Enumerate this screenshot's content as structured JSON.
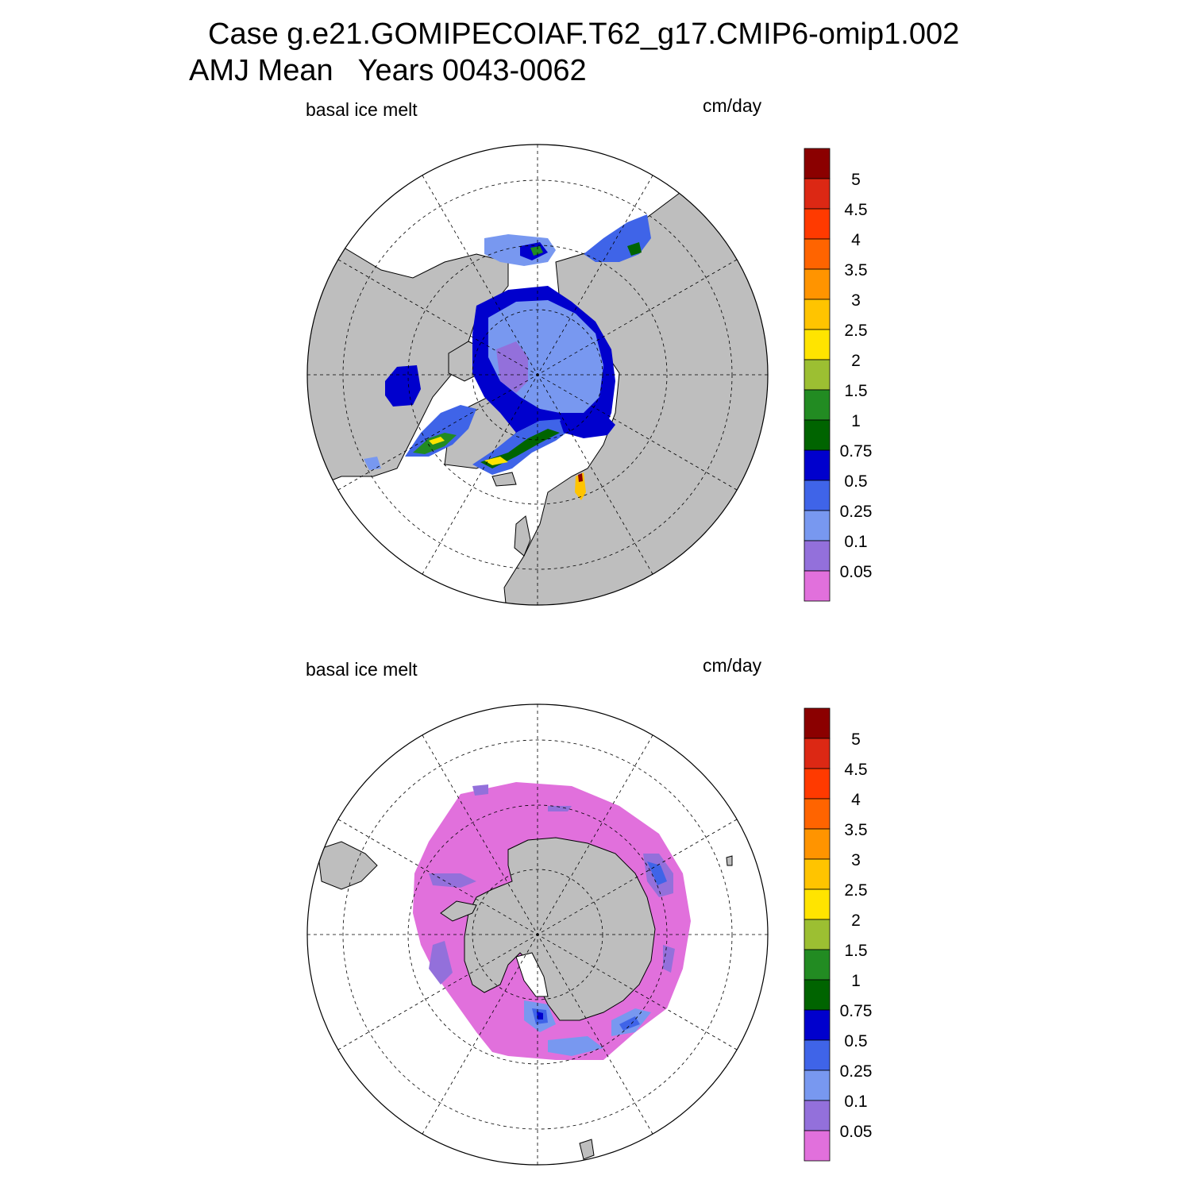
{
  "header": {
    "title_line1": "Case g.e21.GOMIPECOIAF.T62_g17.CMIP6-omip1.002",
    "title_line2": "AMJ Mean   Years 0043-0062"
  },
  "panels": [
    {
      "id": "north",
      "variable_label": "basal ice melt",
      "units_label": "cm/day"
    },
    {
      "id": "south",
      "variable_label": "basal ice melt",
      "units_label": "cm/day"
    }
  ],
  "colorbar": {
    "labels": [
      "5",
      "4.5",
      "4",
      "3.5",
      "3",
      "2.5",
      "2",
      "1.5",
      "1",
      "0.75",
      "0.5",
      "0.25",
      "0.1",
      "0.05"
    ],
    "colors": [
      "#8b0000",
      "#dc2814",
      "#ff3a00",
      "#ff6400",
      "#ff9400",
      "#ffc400",
      "#ffe400",
      "#9cbf32",
      "#228b22",
      "#006400",
      "#0000cd",
      "#3f64e8",
      "#7898f0",
      "#9370db",
      "#e170dc"
    ]
  },
  "colors": {
    "land": "#bebebe",
    "ocean": "#ffffff",
    "grid": "#000000"
  }
}
